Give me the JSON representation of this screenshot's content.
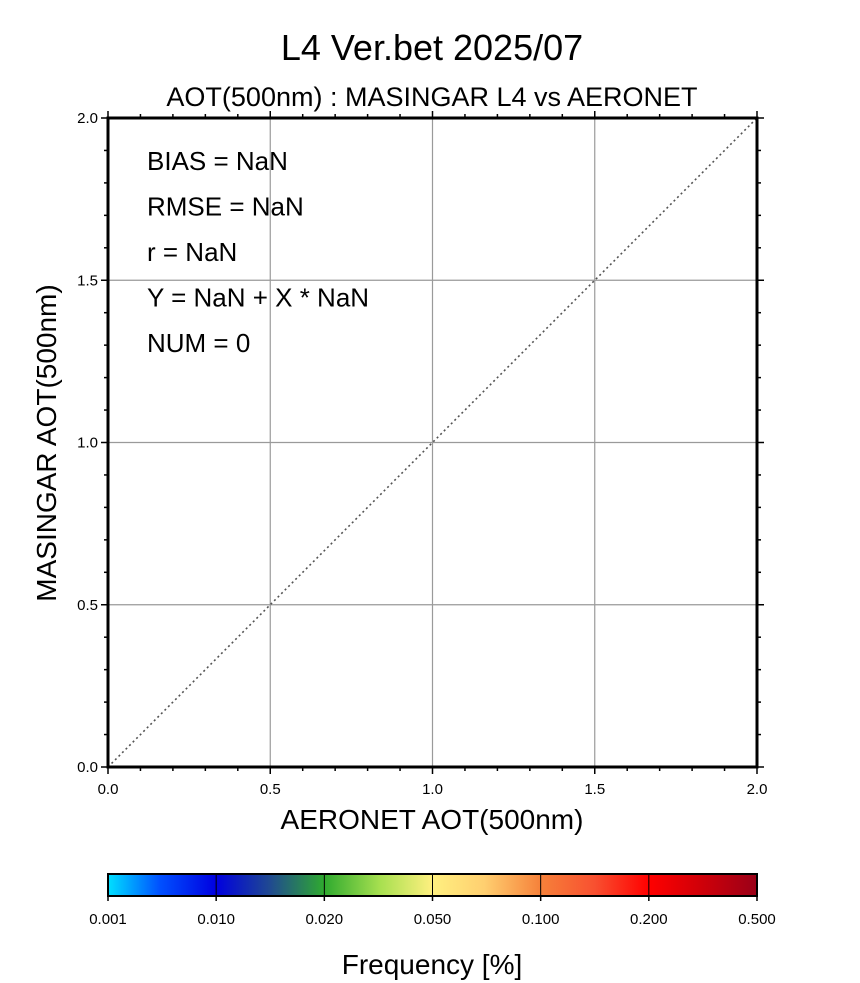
{
  "header": {
    "title": "L4  Ver.bet  2025/07",
    "subtitle": "AOT(500nm) : MASINGAR L4 vs AERONET"
  },
  "chart_data": {
    "type": "scatter",
    "title": "L4  Ver.bet  2025/07",
    "subtitle": "AOT(500nm) : MASINGAR L4 vs AERONET",
    "xlabel": "AERONET AOT(500nm)",
    "ylabel": "MASINGAR AOT(500nm)",
    "xlim": [
      0,
      2
    ],
    "ylim": [
      0,
      2
    ],
    "x_ticks": [
      0.0,
      0.5,
      1.0,
      1.5,
      2.0
    ],
    "y_ticks": [
      0.0,
      0.5,
      1.0,
      1.5,
      2.0
    ],
    "x_tick_labels": [
      "0.0",
      "0.5",
      "1.0",
      "1.5",
      "2.0"
    ],
    "y_tick_labels": [
      "0.0",
      "0.5",
      "1.0",
      "1.5",
      "2.0"
    ],
    "grid": true,
    "reference_line": {
      "style": "dotted",
      "x": [
        0,
        2
      ],
      "y": [
        0,
        2
      ],
      "color": "#555555"
    },
    "points": [],
    "statistics": [
      "BIAS = NaN",
      "RMSE = NaN",
      "r = NaN",
      "Y = NaN + X * NaN",
      "NUM = 0"
    ],
    "colorbar": {
      "title": "Frequency [%]",
      "tick_labels": [
        "0.001",
        "0.010",
        "0.020",
        "0.050",
        "0.100",
        "0.200",
        "0.500"
      ],
      "colors": [
        "#00d9ff",
        "#0000e6",
        "#2faa2f",
        "#fff080",
        "#f66a3a",
        "#ff0000",
        "#a00010"
      ]
    }
  }
}
